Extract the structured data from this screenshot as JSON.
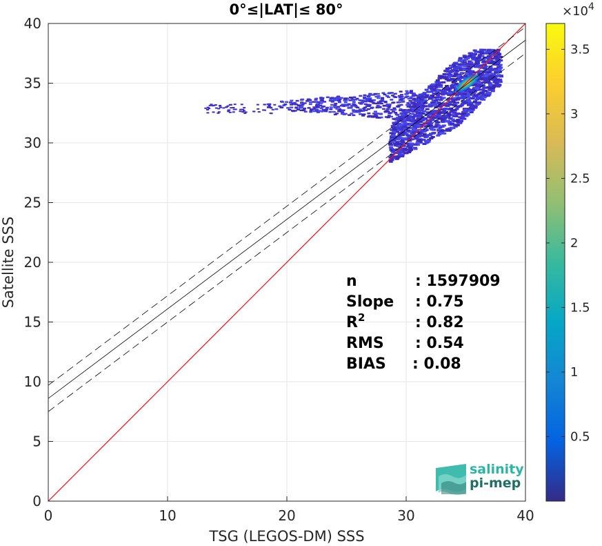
{
  "chart_data": {
    "type": "scatter",
    "title": "0°≤|LAT|≤ 80°",
    "xlabel": "TSG (LEGOS-DM) SSS",
    "ylabel": "Satellite SSS",
    "xlim": [
      0,
      40
    ],
    "ylim": [
      0,
      40
    ],
    "xticks": [
      0,
      10,
      20,
      30,
      40
    ],
    "yticks": [
      0,
      5,
      10,
      15,
      20,
      25,
      30,
      35,
      40
    ],
    "grid": true,
    "one_to_one_line": {
      "from": [
        0,
        0
      ],
      "to": [
        40,
        40
      ],
      "color": "#e8141a"
    },
    "fit_line": {
      "slope": 0.75,
      "intercept": 8.6,
      "color": "#000000"
    },
    "fit_bounds": [
      {
        "slope": 0.75,
        "intercept": 9.7
      },
      {
        "slope": 0.75,
        "intercept": 7.5
      }
    ],
    "density_regions": [
      {
        "x": [
          28.5,
          37.8
        ],
        "y_center": 33.8,
        "y_spread": 2.8
      },
      {
        "x": [
          18,
          31
        ],
        "y_center": 33.2,
        "y_spread": 1.0
      },
      {
        "x": [
          13,
          19
        ],
        "y_center": 32.9,
        "y_spread": 0.4
      }
    ],
    "peak": {
      "x": 35.3,
      "y": 35.2
    },
    "stats": [
      {
        "label": "n",
        "value": ": 1597909"
      },
      {
        "label": "Slope",
        "value": ": 0.75"
      },
      {
        "label": "R",
        "sup": "2",
        "value": ": 0.82"
      },
      {
        "label": "RMS",
        "value": ": 0.54"
      },
      {
        "label": "BIAS",
        "value": ": 0.08"
      }
    ],
    "colorbar": {
      "colormap": "parula",
      "min": 0,
      "max": 3.7,
      "ticks": [
        0.5,
        1,
        1.5,
        2,
        2.5,
        3,
        3.5
      ],
      "tick_labels": [
        "0.5",
        "1",
        "1.5",
        "2",
        "2.5",
        "3",
        "3.5"
      ],
      "multiplier_base": "×10",
      "multiplier_exp": "4"
    }
  },
  "logo": {
    "line1": "salinity",
    "line2": "pi-mep",
    "colors": [
      "#2bb5a5",
      "#1f6f67"
    ]
  }
}
